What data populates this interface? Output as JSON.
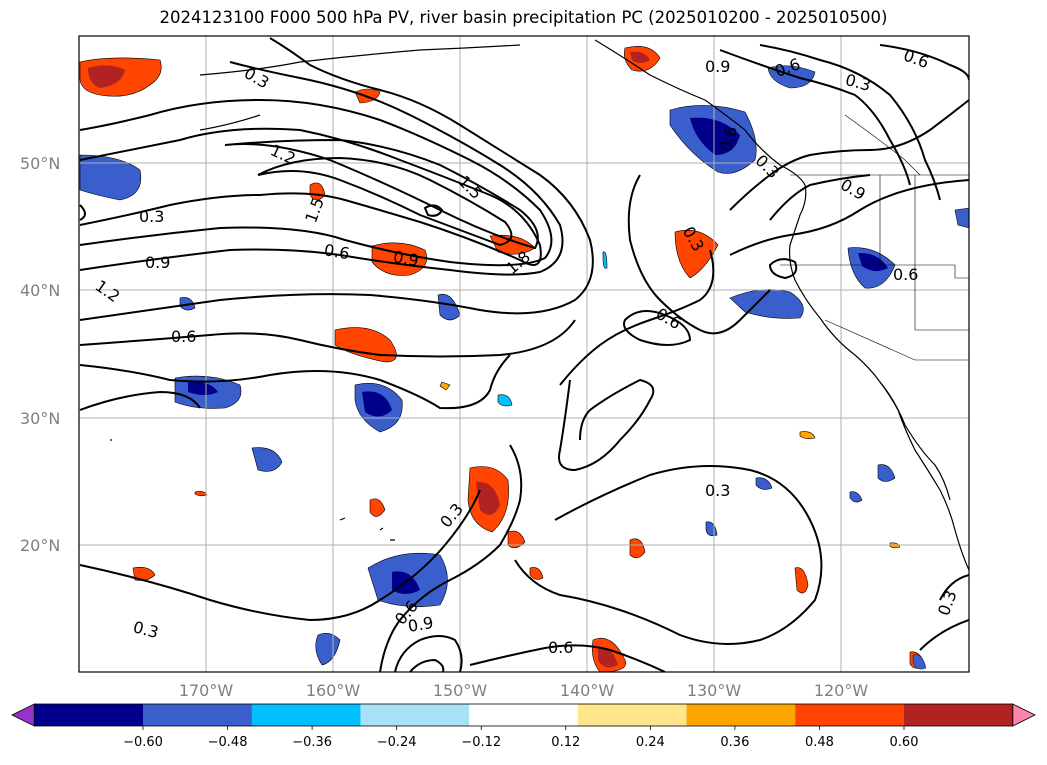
{
  "title": "2024123100 F000 500 hPa PV, river basin precipitation PC (2025010200 - 2025010500)",
  "map": {
    "projection": "PlateCarree",
    "lon_range": [
      -180,
      -110
    ],
    "lat_range": [
      10,
      60
    ],
    "lat_ticks": [
      "20°N",
      "30°N",
      "40°N",
      "50°N"
    ],
    "lon_ticks": [
      "170°W",
      "160°W",
      "150°W",
      "140°W",
      "130°W",
      "120°W"
    ],
    "gridlines": true,
    "coastlines": true
  },
  "contours": {
    "field": "500 hPa PV",
    "labels": [
      "0.3",
      "0.3",
      "0.6",
      "0.9",
      "1.2",
      "0.6",
      "1.2",
      "1.5",
      "1.5",
      "0.6",
      "0.9",
      "1.8",
      "0.9",
      "0.6",
      "0.3",
      "0.3",
      "0.6",
      "0.3",
      "0.6",
      "0.9",
      "0.6",
      "0.6",
      "0.9",
      "0.3",
      "0.3",
      "0.3",
      "0.6",
      "0.3"
    ]
  },
  "colorbar": {
    "ticks": [
      "−0.60",
      "−0.48",
      "−0.36",
      "−0.24",
      "−0.12",
      "0.12",
      "0.24",
      "0.36",
      "0.48",
      "0.60"
    ],
    "colors": [
      "#9932cc",
      "#00008b",
      "#3a5fcd",
      "#00bfff",
      "#a7e2f9",
      "#ffffff",
      "#ffe68a",
      "#ffa500",
      "#ff4500",
      "#b22222",
      "#ff85ab"
    ],
    "extend": "both"
  }
}
